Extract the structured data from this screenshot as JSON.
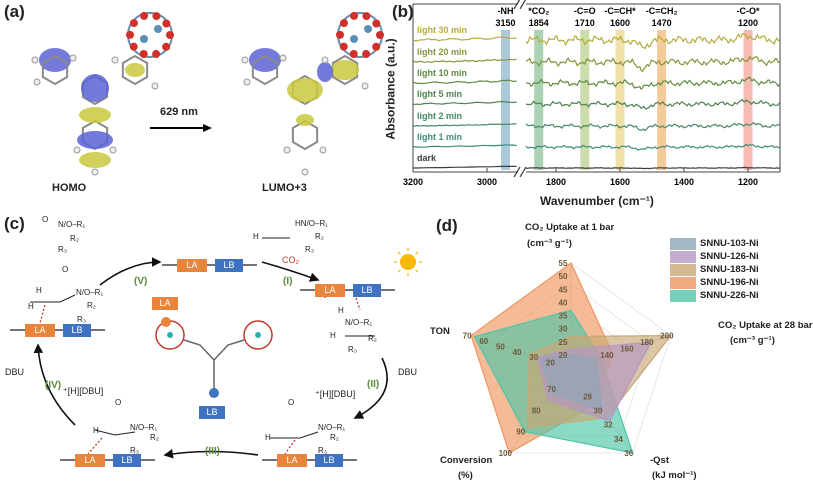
{
  "panel_labels": {
    "a": "(a)",
    "b": "(b)",
    "c": "(c)",
    "d": "(d)"
  },
  "panel_a": {
    "homo_label": "HOMO",
    "lumo_label": "LUMO+3",
    "excitation_label": "629 nm"
  },
  "panel_c": {
    "la": "LA",
    "lb": "LB",
    "steps": [
      "(I)",
      "(II)",
      "(III)",
      "(IV)",
      "(V)"
    ],
    "co2": "CO₂",
    "dbu": "DBU",
    "hdbu": "⁺[H][DBU]",
    "n_o_r1": "N/O–R₁",
    "hn_o_r1": "HN/O–R₁",
    "r2": "R₂",
    "r3": "R₃",
    "h": "H",
    "o": "O"
  },
  "chart_data": [
    {
      "type": "line",
      "title": "",
      "xlabel": "Wavenumber (cm⁻¹)",
      "ylabel": "Absorbance (a.u.)",
      "axis_break": true,
      "xlim_segments": [
        [
          3200,
          2920
        ],
        [
          1900,
          1100
        ]
      ],
      "x_ticks": [
        "3200",
        "3000",
        "1800",
        "1600",
        "1400",
        "1200"
      ],
      "grid": false,
      "series": [
        {
          "name": "dark",
          "color": "#3d3d3d"
        },
        {
          "name": "light 1 min",
          "color": "#3f8c7c"
        },
        {
          "name": "light 2 min",
          "color": "#468a66"
        },
        {
          "name": "light 5 min",
          "color": "#4e8250"
        },
        {
          "name": "light 10 min",
          "color": "#5f8c42"
        },
        {
          "name": "light 20 min",
          "color": "#86963a"
        },
        {
          "name": "light 30 min",
          "color": "#b5ad3c"
        }
      ],
      "bands": [
        {
          "label": "-NH",
          "value": "3150",
          "color": "#8fb7cf"
        },
        {
          "label": "*CO₂",
          "value": "1854",
          "color": "#8fc49a"
        },
        {
          "label": "-C=O",
          "value": "1710",
          "color": "#bcd08f"
        },
        {
          "label": "-C=CH*",
          "value": "1600",
          "color": "#ecd58c"
        },
        {
          "label": "-C=CH₂",
          "value": "1470",
          "color": "#f2b978"
        },
        {
          "label": "-C-O*",
          "value": "1200",
          "color": "#f3a69a"
        }
      ]
    },
    {
      "type": "radar",
      "axes": [
        {
          "label": "CO₂ Uptake at 1 bar",
          "unit": "(cm⁻³ g⁻¹)",
          "range": [
            15,
            55
          ],
          "ticks": [
            "20",
            "25",
            "30",
            "35",
            "40",
            "45",
            "50",
            "55"
          ]
        },
        {
          "label": "CO₂ Uptake at 28 bar",
          "unit": "(cm⁻³ g⁻¹)",
          "range": [
            100,
            200
          ],
          "ticks": [
            "140",
            "160",
            "180",
            "200"
          ]
        },
        {
          "label": "-Qst",
          "unit": "(kJ mol⁻¹)",
          "range": [
            24,
            36
          ],
          "ticks": [
            "28",
            "30",
            "32",
            "34",
            "36"
          ]
        },
        {
          "label": "Conversion",
          "unit": "(%)",
          "range": [
            60,
            100
          ],
          "ticks": [
            "70",
            "80",
            "90",
            "100"
          ]
        },
        {
          "label": "TON",
          "unit": "",
          "range": [
            10,
            70
          ],
          "ticks": [
            "20",
            "30",
            "40",
            "50",
            "60",
            "70"
          ]
        }
      ],
      "legend_position": "top-right",
      "series": [
        {
          "name": "SNNU-103-Ni",
          "color": "#8fa6b8",
          "values": [
            20,
            125,
            30,
            72,
            28
          ]
        },
        {
          "name": "SNNU-126-Ni",
          "color": "#b597c4",
          "values": [
            22,
            180,
            31.5,
            75,
            30
          ]
        },
        {
          "name": "SNNU-183-Ni",
          "color": "#c8a775",
          "values": [
            27,
            200,
            31,
            88,
            35
          ]
        },
        {
          "name": "SNNU-196-Ni",
          "color": "#ef9660",
          "values": [
            55,
            142,
            29,
            100,
            70
          ]
        },
        {
          "name": "SNNU-226-Ni",
          "color": "#4fc5a6",
          "values": [
            37,
            130,
            36,
            90,
            68
          ]
        }
      ]
    }
  ]
}
